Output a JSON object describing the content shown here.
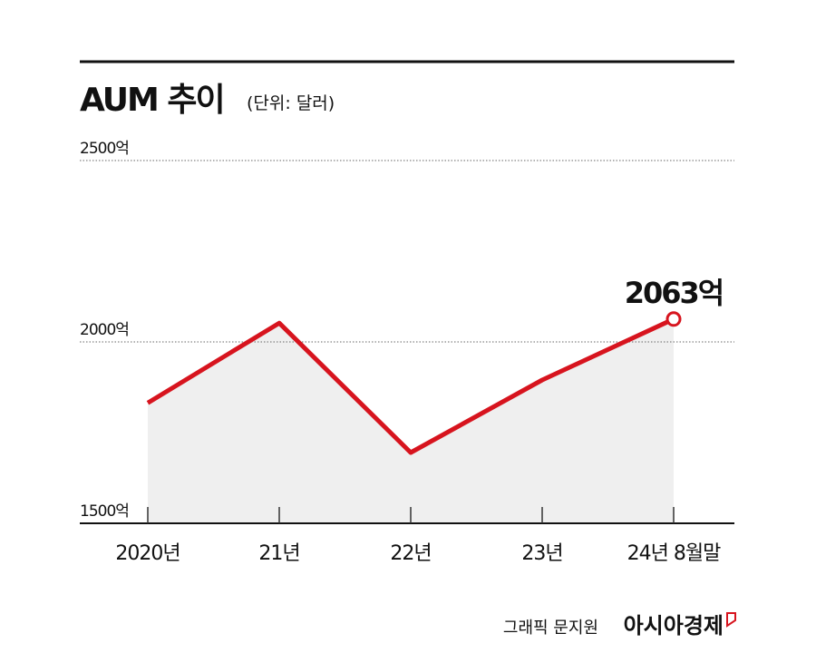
{
  "chart_data": {
    "type": "line",
    "title": "AUM 추이",
    "subtitle": "(단위: 달러)",
    "categories": [
      "2020년",
      "21년",
      "22년",
      "23년",
      "24년 8월말"
    ],
    "values": [
      1832,
      2052,
      1695,
      1895,
      2063
    ],
    "value_labels": [
      null,
      null,
      null,
      null,
      "2063억"
    ],
    "color": "#d7141e",
    "area_color": "#efefef",
    "ylim": [
      1500,
      2500
    ],
    "yticks": [
      {
        "value": 1500,
        "label": "1500억"
      },
      {
        "value": 2000,
        "label": "2000억"
      },
      {
        "value": 2500,
        "label": "2500억"
      }
    ],
    "grid": true,
    "credit": "그래픽 문지원",
    "source": "아시아경제"
  }
}
